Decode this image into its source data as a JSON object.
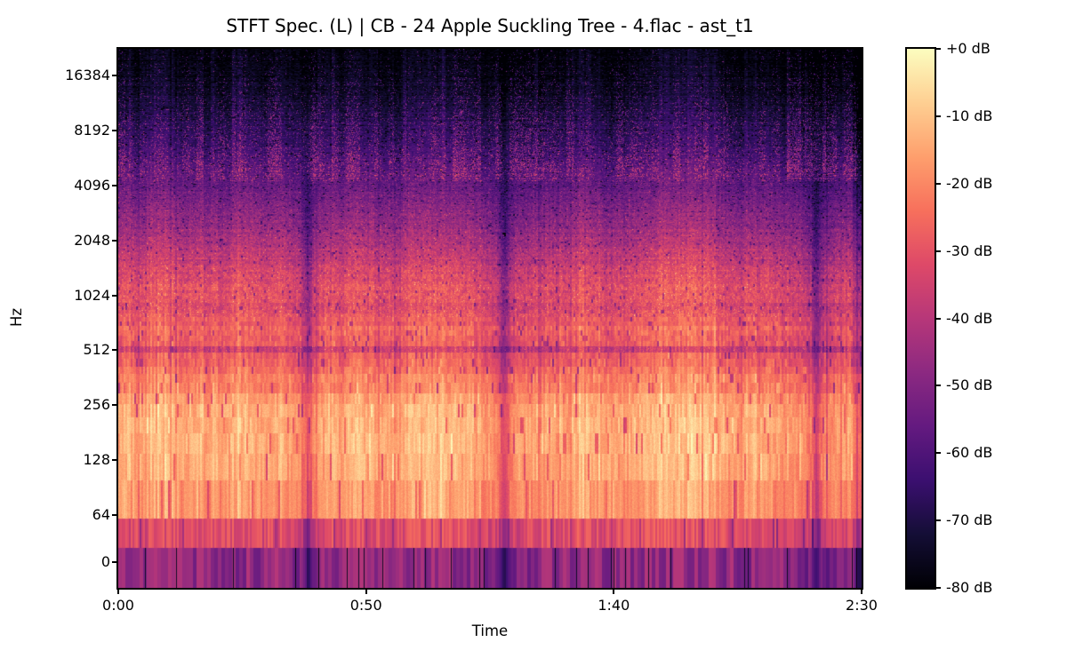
{
  "chart_data": {
    "type": "heatmap",
    "title": "STFT Spec. (L) | CB - 24 Apple Suckling Tree - 4.flac - ast_t1",
    "xlabel": "Time",
    "ylabel": "Hz",
    "x_axis": {
      "tick_labels": [
        "0:00",
        "0:50",
        "1:40",
        "2:30"
      ],
      "tick_seconds": [
        0,
        50,
        100,
        150
      ],
      "duration_seconds": 150
    },
    "y_axis": {
      "scale": "symlog",
      "unit": "Hz",
      "ticks": [
        16384,
        8192,
        4096,
        2048,
        1024,
        512,
        256,
        128,
        64,
        0
      ],
      "top_hz": 22850
    },
    "colorbar": {
      "tick_labels": [
        "+0 dB",
        "-10 dB",
        "-20 dB",
        "-30 dB",
        "-40 dB",
        "-50 dB",
        "-60 dB",
        "-70 dB",
        "-80 dB"
      ],
      "tick_db": [
        0,
        -10,
        -20,
        -30,
        -40,
        -50,
        -60,
        -70,
        -80
      ]
    },
    "db_range": [
      -80,
      0
    ],
    "colormap": "magma",
    "colormap_stops": [
      [
        0.0,
        "#000004"
      ],
      [
        0.1,
        "#140e36"
      ],
      [
        0.2,
        "#3b0f70"
      ],
      [
        0.3,
        "#641a80"
      ],
      [
        0.4,
        "#8c2981"
      ],
      [
        0.5,
        "#b73779"
      ],
      [
        0.6,
        "#de4968"
      ],
      [
        0.7,
        "#f7705c"
      ],
      [
        0.8,
        "#fe9f6d"
      ],
      [
        0.9,
        "#fecf92"
      ],
      [
        1.0,
        "#fcfdbf"
      ]
    ],
    "bin_hz": 40,
    "spectrum_profile_db": [
      [
        0,
        -47
      ],
      [
        40,
        -29
      ],
      [
        80,
        -17
      ],
      [
        120,
        -13.5
      ],
      [
        160,
        -12.5
      ],
      [
        240,
        -14
      ],
      [
        320,
        -18.5
      ],
      [
        400,
        -22
      ],
      [
        480,
        -26
      ],
      [
        520,
        -34
      ],
      [
        560,
        -28
      ],
      [
        640,
        -25.5
      ],
      [
        760,
        -27
      ],
      [
        900,
        -31.5
      ],
      [
        1050,
        -29.5
      ],
      [
        1300,
        -32
      ],
      [
        1600,
        -36
      ],
      [
        2000,
        -41
      ],
      [
        2500,
        -45.5
      ],
      [
        3200,
        -50
      ],
      [
        4200,
        -55
      ],
      [
        5600,
        -60
      ],
      [
        7500,
        -65
      ],
      [
        10000,
        -69.5
      ],
      [
        13500,
        -73.5
      ],
      [
        18000,
        -76.5
      ],
      [
        23000,
        -78
      ]
    ],
    "features": {
      "dark_streak_seconds": [
        38,
        78,
        140.7
      ],
      "notch_hz": [
        512,
        900
      ],
      "dc_band_db": -47,
      "end_fade": true
    }
  }
}
